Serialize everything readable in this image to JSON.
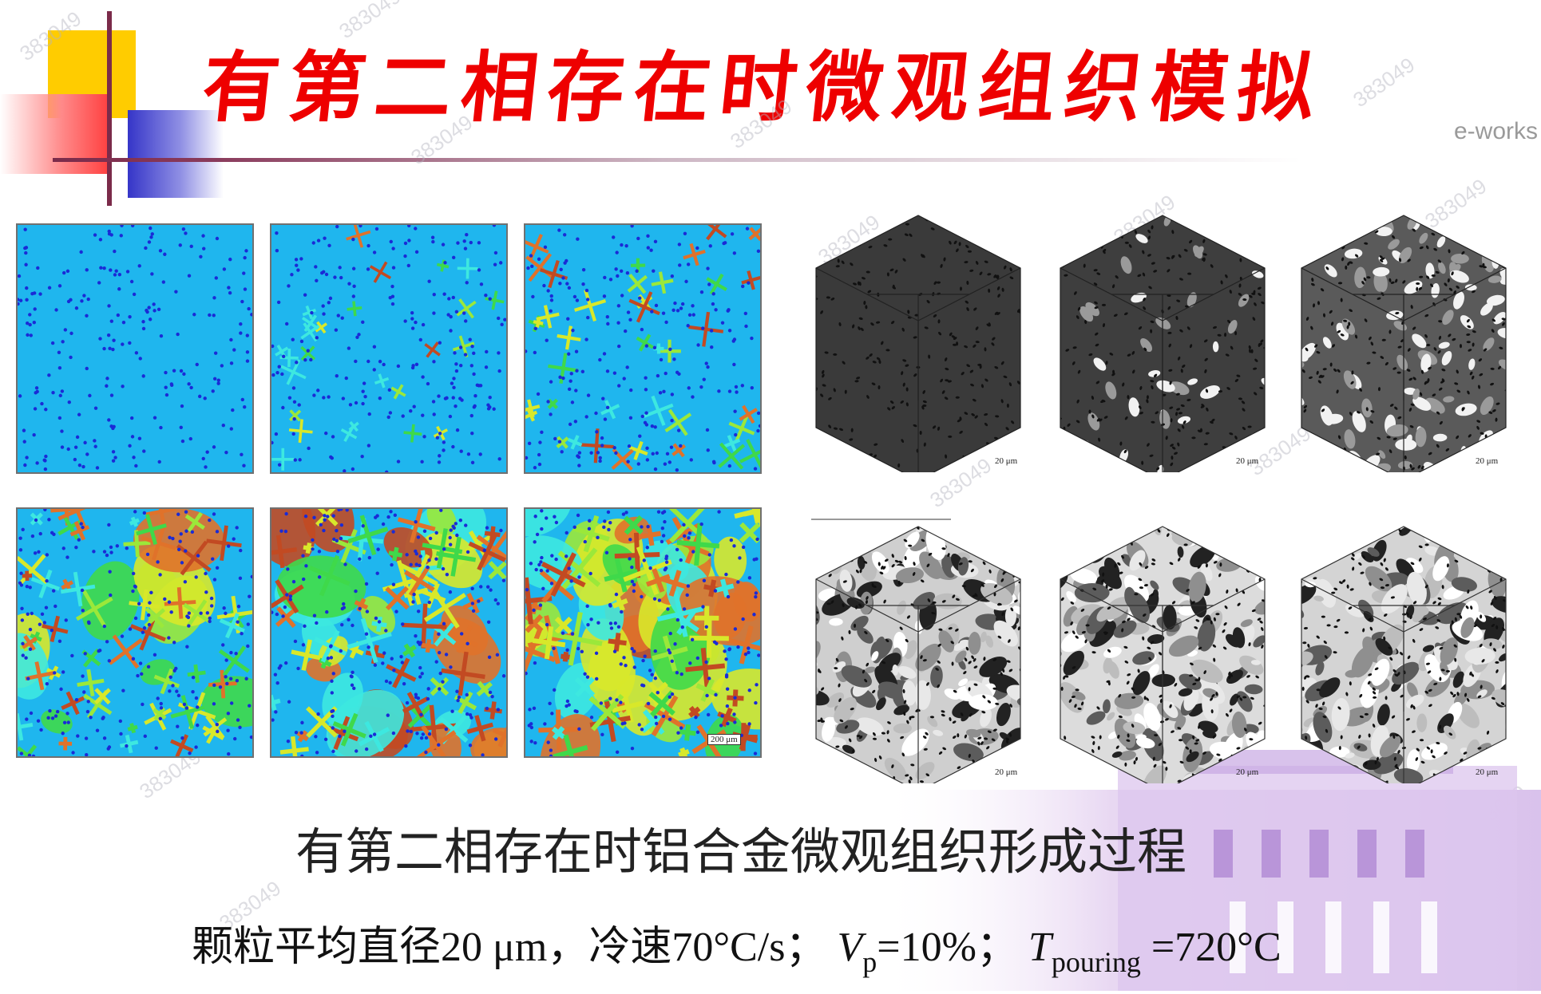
{
  "slide": {
    "title": "有第二相存在时微观组织模拟",
    "brand": "e-works",
    "watermark": "383049",
    "caption": "有第二相存在时铝合金微观组织形成过程",
    "params": {
      "part1": "颗粒平均直径20 μm，冷速70°C/s；",
      "vp_symbol": "V",
      "vp_sub": "p",
      "vp_value": "=10%；",
      "t_symbol": "T",
      "t_sub": "pouring",
      "t_value": " =720°C"
    },
    "scale_2d": "200 μm",
    "scale_3d": "20 μm"
  },
  "colors": {
    "title": "#ee0000",
    "matrix_blue": "#1fb6ee",
    "particle": "#1a2bd6",
    "grain_orange": "#e0722a",
    "grain_yellow": "#d8e82a",
    "grain_green": "#3fd94a",
    "grain_cyan": "#3de8e0"
  }
}
